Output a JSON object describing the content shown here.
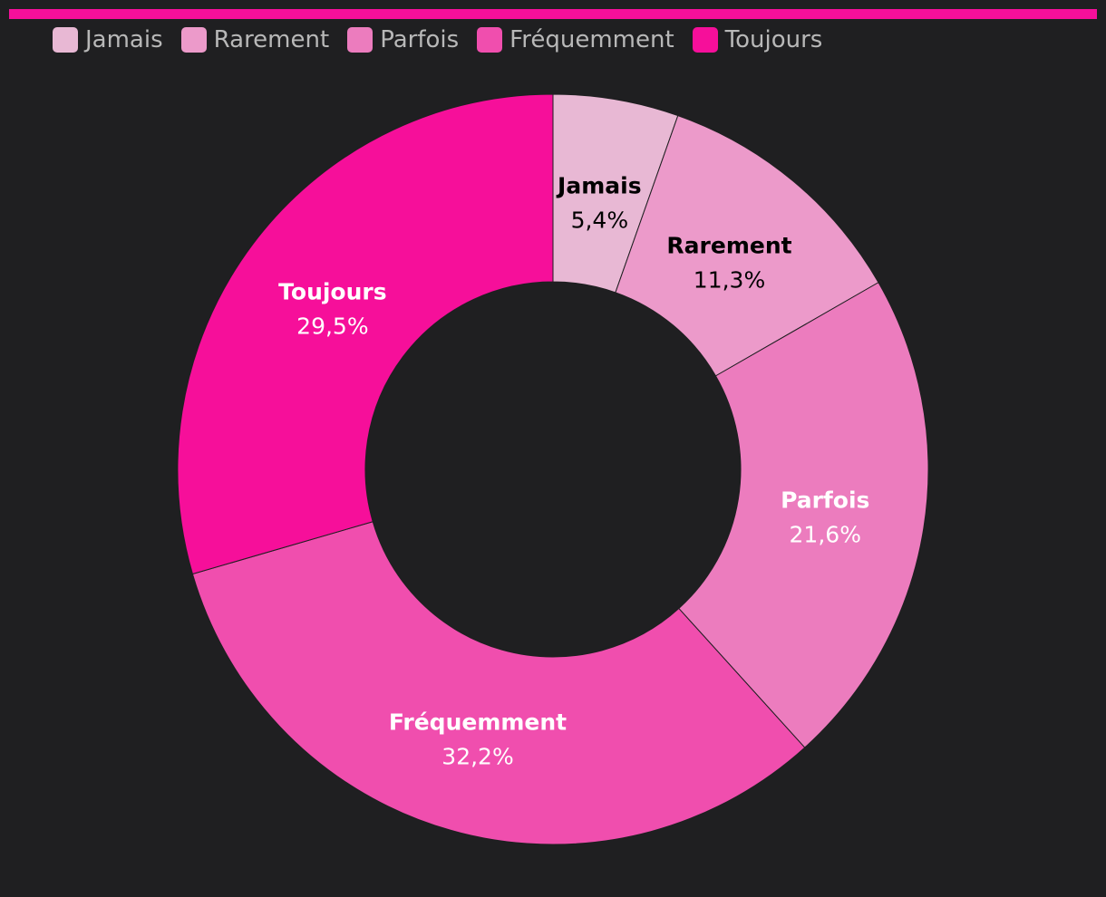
{
  "chart_data": {
    "type": "pie",
    "donut": true,
    "title": "",
    "legend_position": "top-left",
    "accent_color": "#f60f9a",
    "background_color": "#1f1f21",
    "slices": [
      {
        "label": "Jamais",
        "value": 5.4,
        "value_label": "5,4%",
        "color": "#e8b8d4",
        "text_color": "#000000"
      },
      {
        "label": "Rarement",
        "value": 11.3,
        "value_label": "11,3%",
        "color": "#ec9aca",
        "text_color": "#000000"
      },
      {
        "label": "Parfois",
        "value": 21.6,
        "value_label": "21,6%",
        "color": "#ec7cbe",
        "text_color": "#ffffff"
      },
      {
        "label": "Fréquemment",
        "value": 32.2,
        "value_label": "32,2%",
        "color": "#f04eae",
        "text_color": "#ffffff"
      },
      {
        "label": "Toujours",
        "value": 29.5,
        "value_label": "29,5%",
        "color": "#f60f9a",
        "text_color": "#ffffff"
      }
    ]
  }
}
